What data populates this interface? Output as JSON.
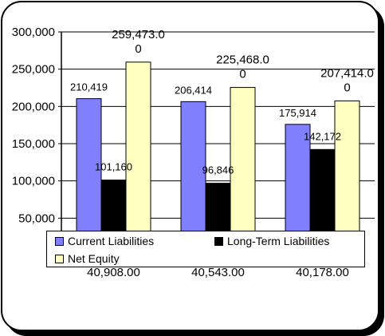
{
  "chart_data": {
    "type": "bar",
    "categories": [
      "40,908.00",
      "40,543.00",
      "40,178.00"
    ],
    "series": [
      {
        "name": "Current Liabilities",
        "values": [
          210419,
          206414,
          175914
        ],
        "labels": [
          "210,419",
          "206,414",
          "175,914"
        ],
        "color": "#8080FF"
      },
      {
        "name": "Long-Term Liabilities",
        "values": [
          101160,
          96846,
          142172
        ],
        "labels": [
          "101,160",
          "96,846",
          "142,172"
        ],
        "color": "#000000"
      },
      {
        "name": "Net Equity",
        "values": [
          259473,
          225468,
          207414
        ],
        "labels": [
          [
            "259,473.0",
            "0"
          ],
          [
            "225,468.0",
            "0"
          ],
          [
            "207,414.0",
            "0"
          ]
        ],
        "color": "#FFFFC0"
      }
    ],
    "yticks": [
      "50,000",
      "100,000",
      "150,000",
      "200,000",
      "250,000",
      "300,000"
    ],
    "ylim": [
      0,
      300000
    ],
    "grid": true,
    "legend_position": "bottom"
  }
}
